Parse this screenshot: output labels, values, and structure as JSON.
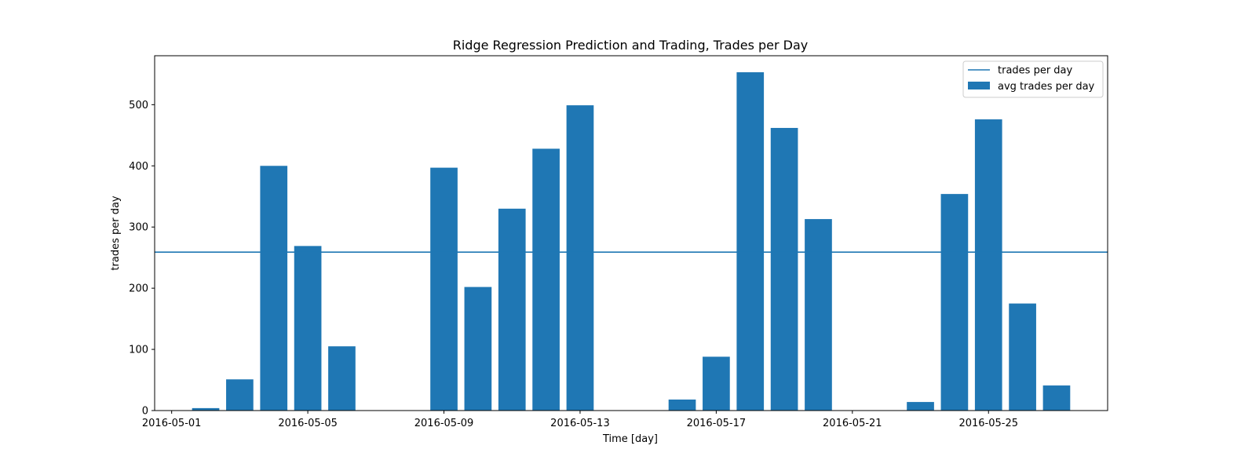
{
  "chart_data": {
    "type": "bar",
    "title": "Ridge Regression Prediction and Trading, Trades per Day",
    "xlabel": "Time [day]",
    "ylabel": "trades per day",
    "x_axis_type": "date",
    "xlim": [
      "2016-04-30T12:00",
      "2016-05-28T12:00"
    ],
    "ylim": [
      0,
      580
    ],
    "yticks": [
      0,
      100,
      200,
      300,
      400,
      500
    ],
    "xticks": [
      "2016-05-01",
      "2016-05-05",
      "2016-05-09",
      "2016-05-13",
      "2016-05-17",
      "2016-05-21",
      "2016-05-25"
    ],
    "grid": false,
    "legend_position": "upper right",
    "bar_color": "#1f77b4",
    "line_color": "#1f77b4",
    "bar_series": {
      "name": "avg trades per day",
      "points": [
        {
          "date": "2016-05-02",
          "value": 4
        },
        {
          "date": "2016-05-03",
          "value": 51
        },
        {
          "date": "2016-05-04",
          "value": 400
        },
        {
          "date": "2016-05-05",
          "value": 269
        },
        {
          "date": "2016-05-06",
          "value": 105
        },
        {
          "date": "2016-05-09",
          "value": 397
        },
        {
          "date": "2016-05-10",
          "value": 202
        },
        {
          "date": "2016-05-11",
          "value": 330
        },
        {
          "date": "2016-05-12",
          "value": 428
        },
        {
          "date": "2016-05-13",
          "value": 499
        },
        {
          "date": "2016-05-16",
          "value": 18
        },
        {
          "date": "2016-05-17",
          "value": 88
        },
        {
          "date": "2016-05-18",
          "value": 553
        },
        {
          "date": "2016-05-19",
          "value": 462
        },
        {
          "date": "2016-05-20",
          "value": 313
        },
        {
          "date": "2016-05-23",
          "value": 14
        },
        {
          "date": "2016-05-24",
          "value": 354
        },
        {
          "date": "2016-05-25",
          "value": 476
        },
        {
          "date": "2016-05-26",
          "value": 175
        },
        {
          "date": "2016-05-27",
          "value": 41
        }
      ]
    },
    "line_series": {
      "name": "trades per day",
      "value": 259
    }
  }
}
